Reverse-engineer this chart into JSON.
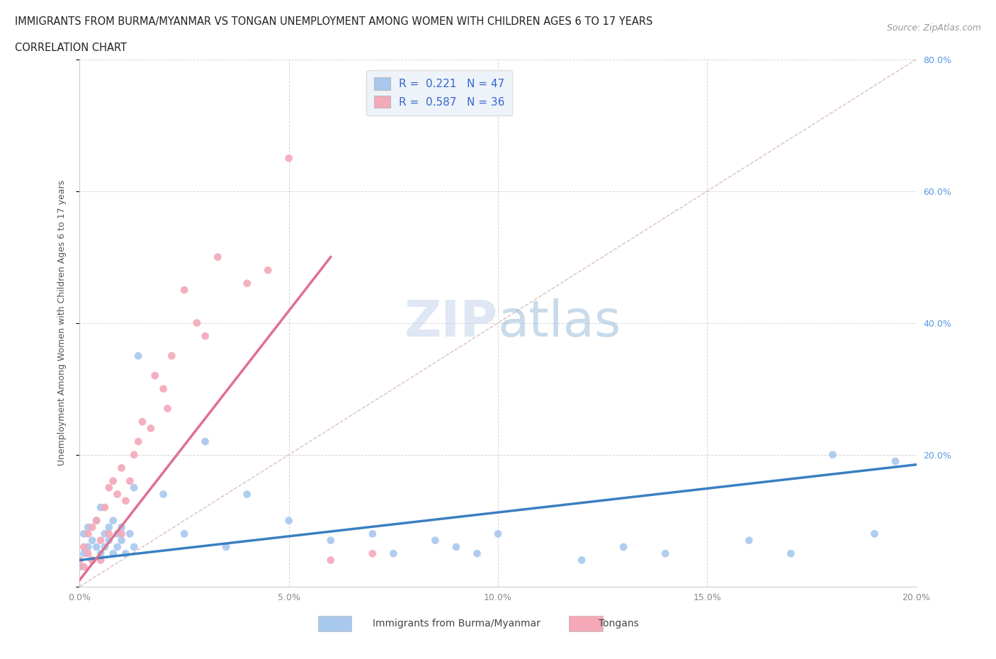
{
  "title_line1": "IMMIGRANTS FROM BURMA/MYANMAR VS TONGAN UNEMPLOYMENT AMONG WOMEN WITH CHILDREN AGES 6 TO 17 YEARS",
  "title_line2": "CORRELATION CHART",
  "source_text": "Source: ZipAtlas.com",
  "ylabel": "Unemployment Among Women with Children Ages 6 to 17 years",
  "xlim": [
    0.0,
    0.2
  ],
  "ylim": [
    0.0,
    0.8
  ],
  "xtick_vals": [
    0.0,
    0.05,
    0.1,
    0.15,
    0.2
  ],
  "xtick_labels": [
    "0.0%",
    "5.0%",
    "10.0%",
    "15.0%",
    "20.0%"
  ],
  "ytick_vals": [
    0.0,
    0.2,
    0.4,
    0.6,
    0.8
  ],
  "blue_R": 0.221,
  "blue_N": 47,
  "pink_R": 0.587,
  "pink_N": 36,
  "blue_color": "#A8C8EE",
  "pink_color": "#F4A8B8",
  "blue_line_color": "#3A7FC1",
  "pink_line_color": "#E07090",
  "diagonal_color": "#D8B8B8",
  "grid_color": "#CCCCCC",
  "background_color": "#FFFFFF",
  "right_label_color": "#5599DD",
  "blue_scatter_x": [
    0.0,
    0.001,
    0.001,
    0.002,
    0.002,
    0.003,
    0.003,
    0.004,
    0.004,
    0.005,
    0.005,
    0.006,
    0.006,
    0.007,
    0.007,
    0.008,
    0.008,
    0.009,
    0.009,
    0.01,
    0.01,
    0.011,
    0.012,
    0.013,
    0.013,
    0.014,
    0.02,
    0.025,
    0.03,
    0.035,
    0.04,
    0.05,
    0.06,
    0.07,
    0.075,
    0.085,
    0.09,
    0.095,
    0.1,
    0.12,
    0.13,
    0.14,
    0.16,
    0.17,
    0.18,
    0.19,
    0.195
  ],
  "blue_scatter_y": [
    0.03,
    0.05,
    0.08,
    0.06,
    0.09,
    0.04,
    0.07,
    0.1,
    0.06,
    0.05,
    0.12,
    0.08,
    0.06,
    0.07,
    0.09,
    0.05,
    0.1,
    0.06,
    0.08,
    0.07,
    0.09,
    0.05,
    0.08,
    0.15,
    0.06,
    0.35,
    0.14,
    0.08,
    0.22,
    0.06,
    0.14,
    0.1,
    0.07,
    0.08,
    0.05,
    0.07,
    0.06,
    0.05,
    0.08,
    0.04,
    0.06,
    0.05,
    0.07,
    0.05,
    0.2,
    0.08,
    0.19
  ],
  "pink_scatter_x": [
    0.0,
    0.001,
    0.001,
    0.002,
    0.002,
    0.003,
    0.003,
    0.004,
    0.005,
    0.005,
    0.006,
    0.007,
    0.007,
    0.008,
    0.009,
    0.01,
    0.01,
    0.011,
    0.012,
    0.013,
    0.014,
    0.015,
    0.017,
    0.018,
    0.02,
    0.021,
    0.022,
    0.025,
    0.028,
    0.03,
    0.033,
    0.04,
    0.045,
    0.05,
    0.06,
    0.07
  ],
  "pink_scatter_y": [
    0.04,
    0.06,
    0.03,
    0.08,
    0.05,
    0.09,
    0.04,
    0.1,
    0.07,
    0.04,
    0.12,
    0.08,
    0.15,
    0.16,
    0.14,
    0.08,
    0.18,
    0.13,
    0.16,
    0.2,
    0.22,
    0.25,
    0.24,
    0.32,
    0.3,
    0.27,
    0.35,
    0.45,
    0.4,
    0.38,
    0.5,
    0.46,
    0.48,
    0.65,
    0.04,
    0.05
  ],
  "blue_line_x": [
    0.0,
    0.2
  ],
  "blue_line_y": [
    0.04,
    0.185
  ],
  "pink_line_x": [
    0.0,
    0.06
  ],
  "pink_line_y": [
    0.01,
    0.5
  ]
}
